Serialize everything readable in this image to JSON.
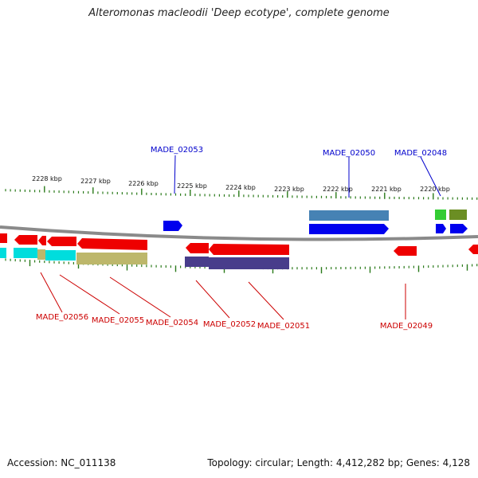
{
  "title": "Alteromonas macleodii 'Deep ecotype', complete genome",
  "footer": {
    "accession": "Accession: NC_011138",
    "summary": "Topology: circular; Length: 4,412,282 bp; Genes: 4,128"
  },
  "colors": {
    "forward_gene": "#0000ee",
    "reverse_gene": "#ee0000",
    "backbone": "#808080",
    "tick": "#2a7a1a",
    "label_top": "#0000cc",
    "label_bottom": "#cc0000"
  },
  "scale": {
    "unit": "kbp",
    "ticks": [
      {
        "label": "2228 kbp"
      },
      {
        "label": "2227 kbp"
      },
      {
        "label": "2226 kbp"
      },
      {
        "label": "2225 kbp"
      },
      {
        "label": "2224 kbp"
      },
      {
        "label": "2223 kbp"
      },
      {
        "label": "2222 kbp"
      },
      {
        "label": "2221 kbp"
      },
      {
        "label": "2220 kbp"
      }
    ]
  },
  "labels_top": [
    {
      "text": "MADE_02053"
    },
    {
      "text": "MADE_02050"
    },
    {
      "text": "MADE_02048"
    }
  ],
  "labels_bottom": [
    {
      "text": "MADE_02056"
    },
    {
      "text": "MADE_02055"
    },
    {
      "text": "MADE_02054"
    },
    {
      "text": "MADE_02052"
    },
    {
      "text": "MADE_02051"
    },
    {
      "text": "MADE_02049"
    }
  ]
}
